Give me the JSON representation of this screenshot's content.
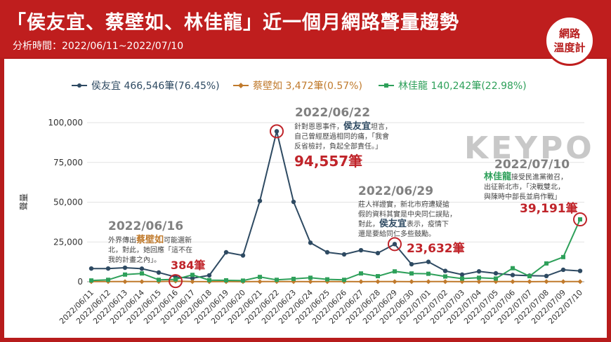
{
  "header": {
    "title": "「侯友宜、蔡壁如、林佳龍」近一個月網路聲量趨勢",
    "subtitle": "分析時間：2022/06/11~2022/07/10",
    "logo_line1": "網路",
    "logo_line2": "溫度計"
  },
  "watermark": "KEYPO",
  "colors": {
    "hou": "#2e4a62",
    "tsai": "#c07a2c",
    "lin": "#2ea05a",
    "highlight": "#c0242a",
    "bg": "#b71c1c"
  },
  "chart_data": {
    "type": "line",
    "ylabel": "聲量",
    "ylim": [
      0,
      100000
    ],
    "yticks": [
      "0",
      "25,000",
      "50,000",
      "75,000",
      "100,000"
    ],
    "x": [
      "2022/06/11",
      "2022/06/12",
      "2022/06/13",
      "2022/06/14",
      "2022/06/15",
      "2022/06/16",
      "2022/06/17",
      "2022/06/18",
      "2022/06/19",
      "2022/06/20",
      "2022/06/21",
      "2022/06/22",
      "2022/06/23",
      "2022/06/24",
      "2022/06/25",
      "2022/06/26",
      "2022/06/27",
      "2022/06/28",
      "2022/06/29",
      "2022/06/30",
      "2022/07/01",
      "2022/07/02",
      "2022/07/03",
      "2022/07/04",
      "2022/07/05",
      "2022/07/06",
      "2022/07/07",
      "2022/07/08",
      "2022/07/09",
      "2022/07/10"
    ],
    "series": [
      {
        "name": "侯友宜 466,546筆(76.45%)",
        "marker": "circle",
        "values": [
          8300,
          8300,
          8800,
          8200,
          5800,
          3000,
          2200,
          4000,
          18500,
          16500,
          50800,
          94557,
          50200,
          24500,
          18500,
          17200,
          19800,
          18000,
          23632,
          11000,
          12500,
          6800,
          4500,
          6500,
          5300,
          4200,
          3800,
          3600,
          7500,
          6800
        ]
      },
      {
        "name": "蔡壁如 3,472筆(0.57%)",
        "marker": "diamond",
        "values": [
          80,
          90,
          70,
          80,
          100,
          384,
          80,
          60,
          70,
          60,
          80,
          90,
          70,
          60,
          80,
          70,
          60,
          80,
          70,
          60,
          80,
          70,
          60,
          80,
          70,
          80,
          60,
          90,
          70,
          80
        ]
      },
      {
        "name": "林佳龍 140,242筆(22.98%)",
        "marker": "square",
        "values": [
          800,
          1200,
          4500,
          5200,
          1200,
          1500,
          4300,
          1000,
          900,
          700,
          3000,
          1200,
          1800,
          2500,
          1500,
          1200,
          5200,
          3500,
          6500,
          5200,
          5000,
          3300,
          2000,
          2500,
          2000,
          8500,
          3500,
          11500,
          15500,
          39191
        ]
      }
    ],
    "annotations": [
      {
        "date": "2022/06/16",
        "text": "外界傳出蔡壁如可能選新北，對此，她回應「這不在我的計畫之內」。",
        "highlight": "蔡壁如",
        "value": "384筆"
      },
      {
        "date": "2022/06/22",
        "text": "針對恩恩事件，侯友宜坦言，自己曾經歷過相同的痛，「我會反省檢討，負起全部責任。」",
        "highlight": "侯友宜",
        "value": "94,557筆"
      },
      {
        "date": "2022/06/29",
        "text": "莊人祥證實，新北市府遭疑搶假的資料其實是中央同仁誤貼，對此，侯友宜表示，疫情下還是要給同仁多些鼓勵。",
        "highlight": "侯友宜",
        "value": "23,632筆"
      },
      {
        "date": "2022/07/10",
        "text": "林佳龍接受民進黨徵召，出征新北市，「決戰雙北，與陳時中部長並肩作戰」",
        "highlight": "林佳龍",
        "value": "39,191筆"
      }
    ]
  }
}
